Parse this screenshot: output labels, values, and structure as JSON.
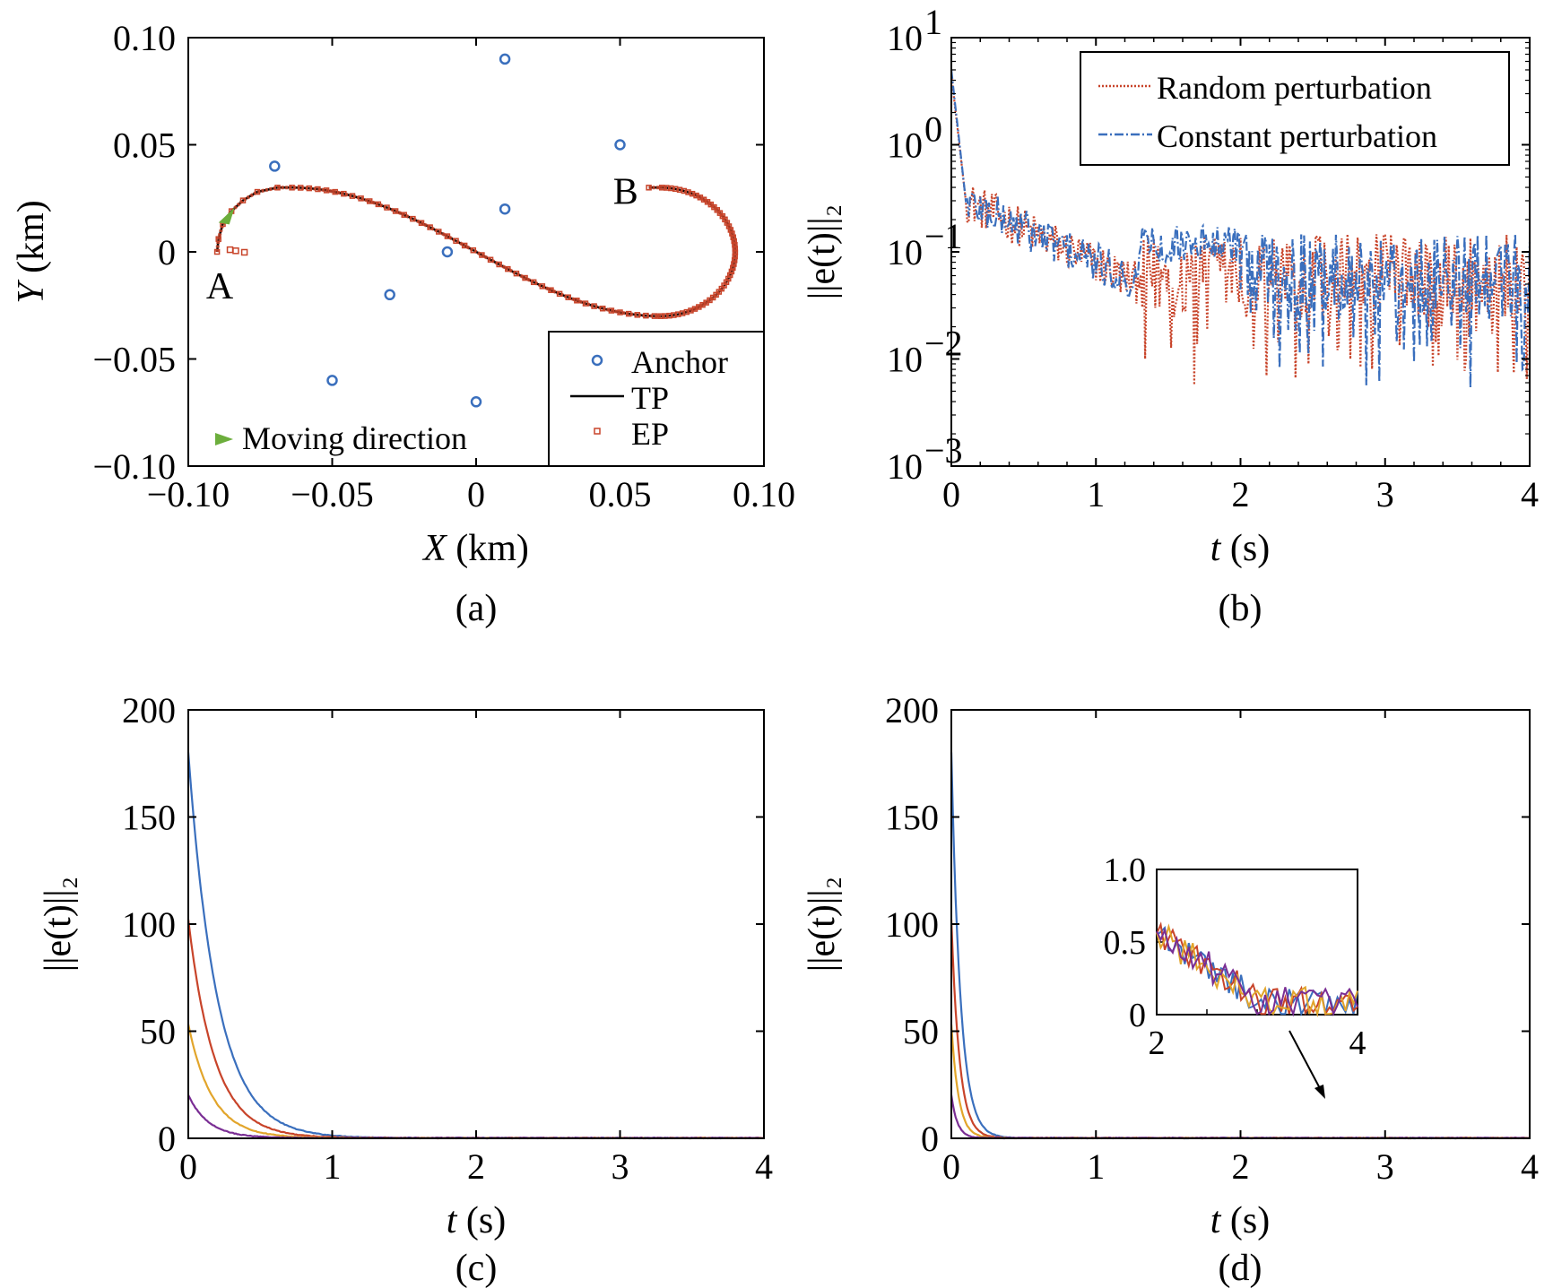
{
  "colors": {
    "blue": "#3a6fbd",
    "red": "#c8442a",
    "yellow": "#e2a52b",
    "purple": "#7a2e94",
    "green": "#6cae3c",
    "black": "#000000"
  },
  "chart_data": [
    {
      "id": "a",
      "type": "scatter",
      "caption": "(a)",
      "xlabel": {
        "var": "X",
        "unit": " (km)"
      },
      "ylabel": {
        "var": "Y",
        "unit": " (km)"
      },
      "xlim": [
        -0.1,
        0.1
      ],
      "ylim": [
        -0.1,
        0.1
      ],
      "xticks": [
        {
          "v": -0.1,
          "label": "−0.10"
        },
        {
          "v": -0.05,
          "label": "−0.05"
        },
        {
          "v": 0,
          "label": "0"
        },
        {
          "v": 0.05,
          "label": "0.05"
        },
        {
          "v": 0.1,
          "label": "0.10"
        }
      ],
      "yticks": [
        {
          "v": 0.1,
          "label": "0.10"
        },
        {
          "v": 0.05,
          "label": "0.05"
        },
        {
          "v": 0,
          "label": "0"
        },
        {
          "v": -0.05,
          "label": "−0.05"
        },
        {
          "v": -0.1,
          "label": "−0.10"
        }
      ],
      "anchors": [
        [
          0.01,
          0.09
        ],
        [
          0.05,
          0.05
        ],
        [
          -0.07,
          0.04
        ],
        [
          0.01,
          0.02
        ],
        [
          -0.01,
          0
        ],
        [
          -0.03,
          -0.02
        ],
        [
          -0.05,
          -0.06
        ],
        [
          0,
          -0.07
        ]
      ],
      "annotations": [
        {
          "text": "A",
          "x": -0.09,
          "y": -0.015
        },
        {
          "text": "B",
          "x": 0.051,
          "y": 0.029
        }
      ],
      "moving_arrow": {
        "x": -0.087,
        "y": 0.017
      },
      "legend": {
        "position": "bottom-right",
        "items": [
          {
            "marker": "circle",
            "label": "Anchor"
          },
          {
            "marker": "line",
            "label": "TP"
          },
          {
            "marker": "square",
            "label": "EP"
          }
        ],
        "moving_label": "Moving direction"
      }
    },
    {
      "id": "b",
      "type": "line",
      "caption": "(b)",
      "scale": "log",
      "xlabel": {
        "var": "t",
        "unit": " (s)"
      },
      "ylabel": "||e(t)||₂",
      "xlim": [
        0,
        4
      ],
      "ylim": [
        0.001,
        10
      ],
      "xticks": [
        "0",
        "1",
        "2",
        "3",
        "4"
      ],
      "yticks": [
        {
          "base": "10",
          "exp": "1"
        },
        {
          "base": "10",
          "exp": "0"
        },
        {
          "base": "10",
          "exp": "−1"
        },
        {
          "base": "10",
          "exp": "−2"
        },
        {
          "base": "10",
          "exp": "−3"
        }
      ],
      "legend": {
        "position": "top-right",
        "items": [
          {
            "style": "dotted",
            "label": "Random perturbation"
          },
          {
            "style": "dashdot",
            "label": "Constant perturbation"
          }
        ]
      },
      "series": [
        {
          "label_ref": "Random perturbation",
          "t0": 4.5,
          "noise": "high"
        },
        {
          "label_ref": "Constant perturbation",
          "t0": 5.0,
          "noise": "high"
        }
      ]
    },
    {
      "id": "c",
      "type": "line",
      "caption": "(c)",
      "xlabel": {
        "var": "t",
        "unit": " (s)"
      },
      "ylabel": "||e(t)||₂",
      "xlim": [
        0,
        4
      ],
      "ylim": [
        0,
        200
      ],
      "xticks": [
        "0",
        "1",
        "2",
        "3",
        "4"
      ],
      "yticks": [
        "200",
        "150",
        "100",
        "50",
        "0"
      ],
      "series": [
        {
          "initial": 180,
          "decay_rate": 5.0
        },
        {
          "initial": 102,
          "decay_rate": 5.5
        },
        {
          "initial": 53,
          "decay_rate": 6.0
        },
        {
          "initial": 20,
          "decay_rate": 7.0
        }
      ]
    },
    {
      "id": "d",
      "type": "line",
      "caption": "(d)",
      "xlabel": {
        "var": "t",
        "unit": " (s)"
      },
      "ylabel": "||e(t)||₂",
      "xlim": [
        0,
        4
      ],
      "ylim": [
        0,
        200
      ],
      "xticks": [
        "0",
        "1",
        "2",
        "3",
        "4"
      ],
      "yticks": [
        "200",
        "150",
        "100",
        "50",
        "0"
      ],
      "series": [
        {
          "initial": 180,
          "decay_rate": 16
        },
        {
          "initial": 102,
          "decay_rate": 18
        },
        {
          "initial": 53,
          "decay_rate": 20
        },
        {
          "initial": 20,
          "decay_rate": 24
        }
      ],
      "inset": {
        "xlim": [
          2,
          4
        ],
        "ylim": [
          0,
          1
        ],
        "xticks": [
          "2",
          "4"
        ],
        "yticks": [
          "1.0",
          "0.5",
          "0"
        ]
      }
    }
  ]
}
